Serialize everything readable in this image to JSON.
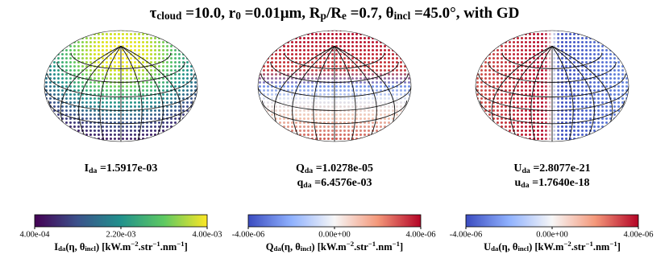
{
  "title": [
    "τ",
    {
      "sub": "cloud"
    },
    " =10.0, r",
    {
      "sub": "0"
    },
    " =0.01μm, R",
    {
      "sub": "p"
    },
    "/R",
    {
      "sub": "e"
    },
    " =0.7, θ",
    {
      "sub": "incl"
    },
    " =45.0°, with GD"
  ],
  "chart_data": [
    {
      "type": "colorbar",
      "labels": [
        [
          "I",
          {
            "sub": "da"
          },
          " =1.5917e-03"
        ]
      ],
      "colormap": [
        "#440154",
        "#3b528b",
        "#21918c",
        "#5ec962",
        "#fde725"
      ],
      "xlim": [
        0.0004,
        0.004
      ],
      "xticks": [
        {
          "value": 0.0004,
          "label": "4.00e-04"
        },
        {
          "value": 0.0022,
          "label": "2.20e-03"
        },
        {
          "value": 0.004,
          "label": "4.00e-03"
        }
      ],
      "xlabel": [
        "I",
        {
          "sub": "da"
        },
        "(η, θ",
        {
          "sub": "incl"
        },
        ") [kW.m",
        {
          "sup": "−2"
        },
        ".str",
        {
          "sup": "−1"
        },
        ".nm",
        {
          "sup": "−1"
        },
        "]"
      ]
    },
    {
      "type": "colorbar",
      "labels": [
        [
          "Q",
          {
            "sub": "da"
          },
          " =1.0278e-05"
        ],
        [
          "q",
          {
            "sub": "da"
          },
          " =6.4576e-03"
        ]
      ],
      "colormap": [
        "#3b4cc0",
        "#8fb1fe",
        "#f7f7f7",
        "#f4987a",
        "#b40426"
      ],
      "xlim": [
        -4e-06,
        4e-06
      ],
      "xticks": [
        {
          "value": -4e-06,
          "label": "-4.00e-06"
        },
        {
          "value": 0,
          "label": "0.00e+00"
        },
        {
          "value": 4e-06,
          "label": "4.00e-06"
        }
      ],
      "xlabel": [
        "Q",
        {
          "sub": "da"
        },
        "(η, θ",
        {
          "sub": "incl"
        },
        ") [kW.m",
        {
          "sup": "−2"
        },
        ".str",
        {
          "sup": "−1"
        },
        ".nm",
        {
          "sup": "−1"
        },
        "]"
      ]
    },
    {
      "type": "colorbar",
      "labels": [
        [
          "U",
          {
            "sub": "da"
          },
          " =2.8077e-21"
        ],
        [
          "u",
          {
            "sub": "da"
          },
          " =1.7640e-18"
        ]
      ],
      "colormap": [
        "#3b4cc0",
        "#8fb1fe",
        "#f7f7f7",
        "#f4987a",
        "#b40426"
      ],
      "xlim": [
        -4e-06,
        4e-06
      ],
      "xticks": [
        {
          "value": -4e-06,
          "label": "-4.00e-06"
        },
        {
          "value": 0,
          "label": "0.00e+00"
        },
        {
          "value": 4e-06,
          "label": "4.00e-06"
        }
      ],
      "xlabel": [
        "U",
        {
          "sub": "da"
        },
        "(η, θ",
        {
          "sub": "incl"
        },
        ") [kW.m",
        {
          "sup": "−2"
        },
        ".str",
        {
          "sup": "−1"
        },
        ".nm",
        {
          "sup": "−1"
        },
        "]"
      ]
    }
  ]
}
